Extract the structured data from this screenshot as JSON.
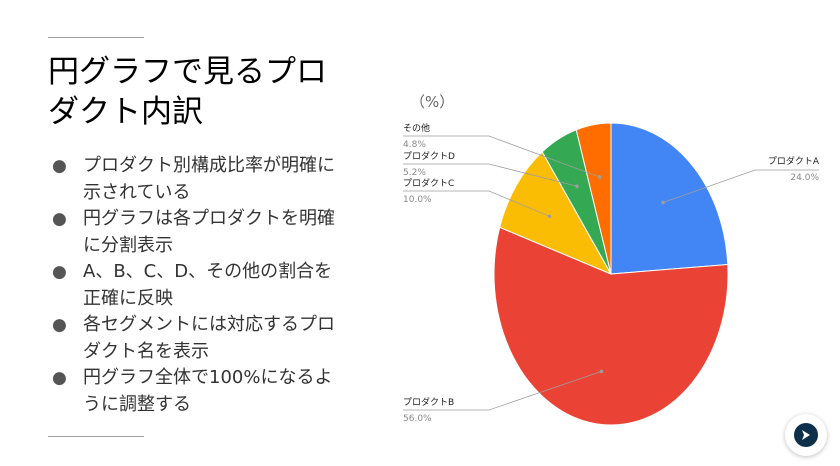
{
  "slide": {
    "title_lines": [
      "円グラフで見るプロ",
      "ダクト内訳"
    ],
    "bullets": [
      [
        "プロダクト別構成比率が明確に",
        "示されている"
      ],
      [
        "円グラフは各プロダクトを明確",
        "に分割表示"
      ],
      [
        "A、B、C、D、その他の割合を",
        "正確に反映"
      ],
      [
        "各セグメントには対応するプロ",
        "ダクト名を表示"
      ],
      [
        "円グラフ全体で100%になるよ",
        "うに調整する"
      ]
    ],
    "bullet_glyph": "●",
    "fab_icon": "sparkle-icon"
  },
  "chart_data": {
    "type": "pie",
    "unit_label": "（%）",
    "slices": [
      {
        "label": "プロダクトA",
        "value": 24.0,
        "value_label": "24.0%",
        "color": "#4285f4"
      },
      {
        "label": "プロダクトB",
        "value": 56.0,
        "value_label": "56.0%",
        "color": "#ea4335"
      },
      {
        "label": "プロダクトC",
        "value": 10.0,
        "value_label": "10.0%",
        "color": "#fbbc04"
      },
      {
        "label": "プロダクトD",
        "value": 5.2,
        "value_label": "5.2%",
        "color": "#34a853"
      },
      {
        "label": "その他",
        "value": 4.8,
        "value_label": "4.8%",
        "color": "#ff6d01"
      }
    ]
  }
}
